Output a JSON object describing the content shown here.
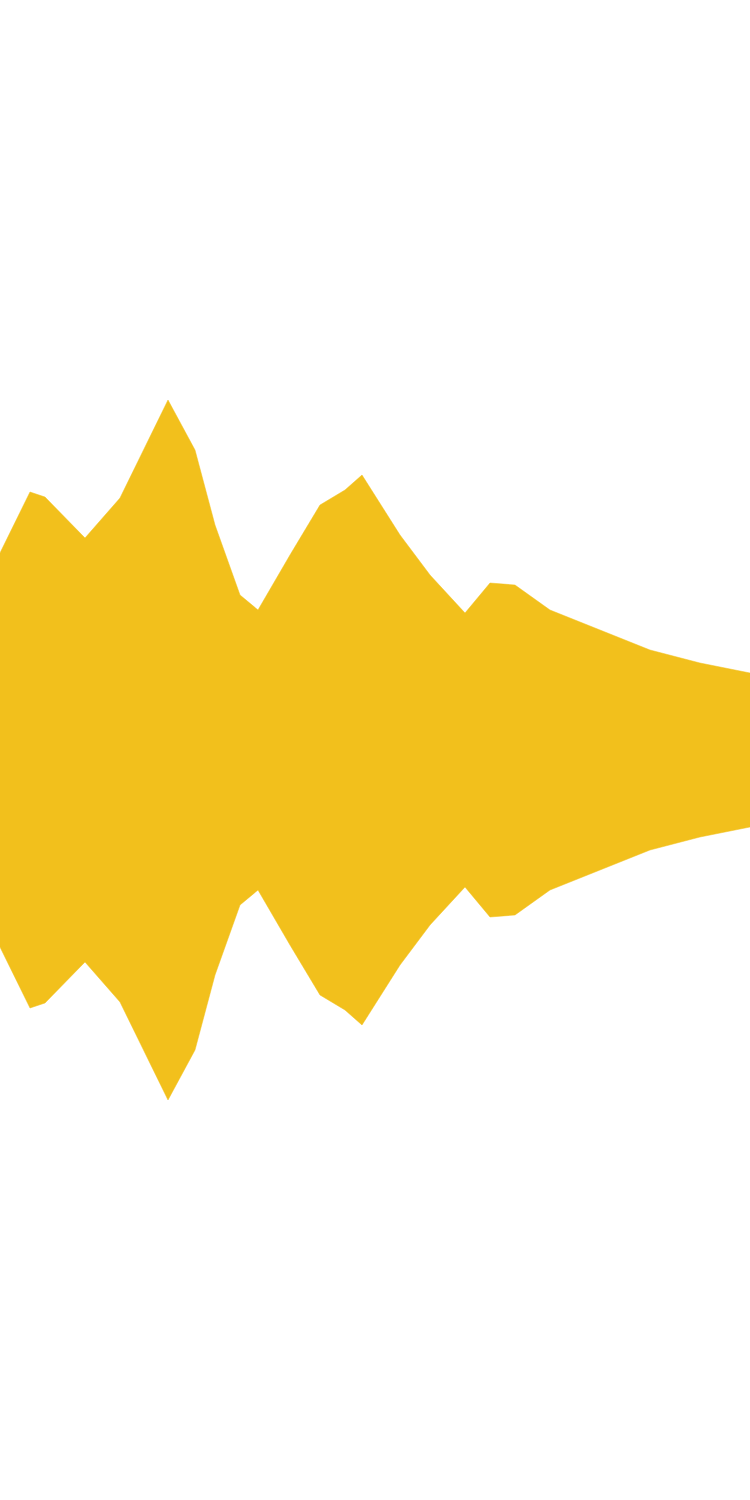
{
  "chart_data": {
    "type": "area",
    "x": [
      0,
      30,
      45,
      85,
      120,
      168,
      195,
      215,
      240,
      258,
      290,
      320,
      345,
      362,
      400,
      430,
      465,
      490,
      515,
      550,
      600,
      650,
      700,
      750
    ],
    "values": [
      197,
      258,
      253,
      212,
      252,
      350,
      300,
      225,
      155,
      140,
      195,
      245,
      260,
      275,
      215,
      175,
      137,
      167,
      165,
      140,
      120,
      100,
      87,
      77
    ],
    "color": "#f2c01c",
    "xlim": [
      0,
      750
    ],
    "ylim": [
      0,
      750
    ],
    "grid": false,
    "tick_labels": false
  }
}
